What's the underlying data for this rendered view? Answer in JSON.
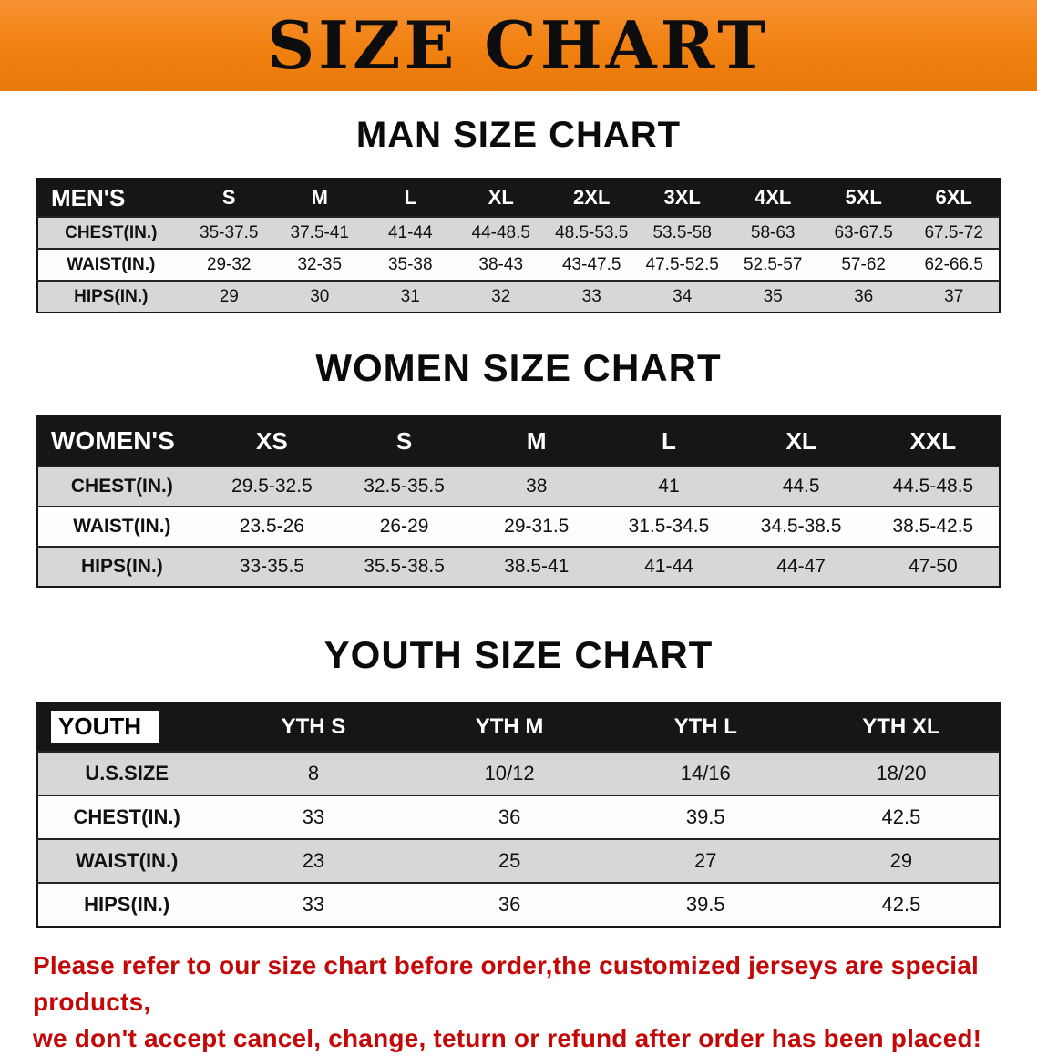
{
  "banner": {
    "title": "SIZE CHART"
  },
  "sections": [
    {
      "heading": "MAN SIZE CHART",
      "table": {
        "header": [
          "MEN'S",
          "S",
          "M",
          "L",
          "XL",
          "2XL",
          "3XL",
          "4XL",
          "5XL",
          "6XL"
        ],
        "rows": [
          [
            "CHEST(IN.)",
            "35-37.5",
            "37.5-41",
            "41-44",
            "44-48.5",
            "48.5-53.5",
            "53.5-58",
            "58-63",
            "63-67.5",
            "67.5-72"
          ],
          [
            "WAIST(IN.)",
            "29-32",
            "32-35",
            "35-38",
            "38-43",
            "43-47.5",
            "47.5-52.5",
            "52.5-57",
            "57-62",
            "62-66.5"
          ],
          [
            "HIPS(IN.)",
            "29",
            "30",
            "31",
            "32",
            "33",
            "34",
            "35",
            "36",
            "37"
          ]
        ]
      }
    },
    {
      "heading": "WOMEN SIZE CHART",
      "table": {
        "header": [
          "WOMEN'S",
          "XS",
          "S",
          "M",
          "L",
          "XL",
          "XXL"
        ],
        "rows": [
          [
            "CHEST(IN.)",
            "29.5-32.5",
            "32.5-35.5",
            "38",
            "41",
            "44.5",
            "44.5-48.5"
          ],
          [
            "WAIST(IN.)",
            "23.5-26",
            "26-29",
            "29-31.5",
            "31.5-34.5",
            "34.5-38.5",
            "38.5-42.5"
          ],
          [
            "HIPS(IN.)",
            "33-35.5",
            "35.5-38.5",
            "38.5-41",
            "41-44",
            "44-47",
            "47-50"
          ]
        ]
      }
    },
    {
      "heading": "YOUTH SIZE CHART",
      "table": {
        "header": [
          "YOUTH",
          "YTH S",
          "YTH M",
          "YTH L",
          "YTH XL"
        ],
        "rows": [
          [
            "U.S.SIZE",
            "8",
            "10/12",
            "14/16",
            "18/20"
          ],
          [
            "CHEST(IN.)",
            "33",
            "36",
            "39.5",
            "42.5"
          ],
          [
            "WAIST(IN.)",
            "23",
            "25",
            "27",
            "29"
          ],
          [
            "HIPS(IN.)",
            "33",
            "36",
            "39.5",
            "42.5"
          ]
        ]
      }
    }
  ],
  "disclaimer": {
    "line1": "Please refer to our size chart before order,the customized jerseys are special products,",
    "line2": "we don't accept cancel, change, teturn or refund after order has been placed!"
  },
  "colors": {
    "banner_bg": "#f0800f",
    "table_header_bg": "#161616",
    "row_alt_bg": "#d7d7d7",
    "disclaimer_text": "#c40808"
  }
}
